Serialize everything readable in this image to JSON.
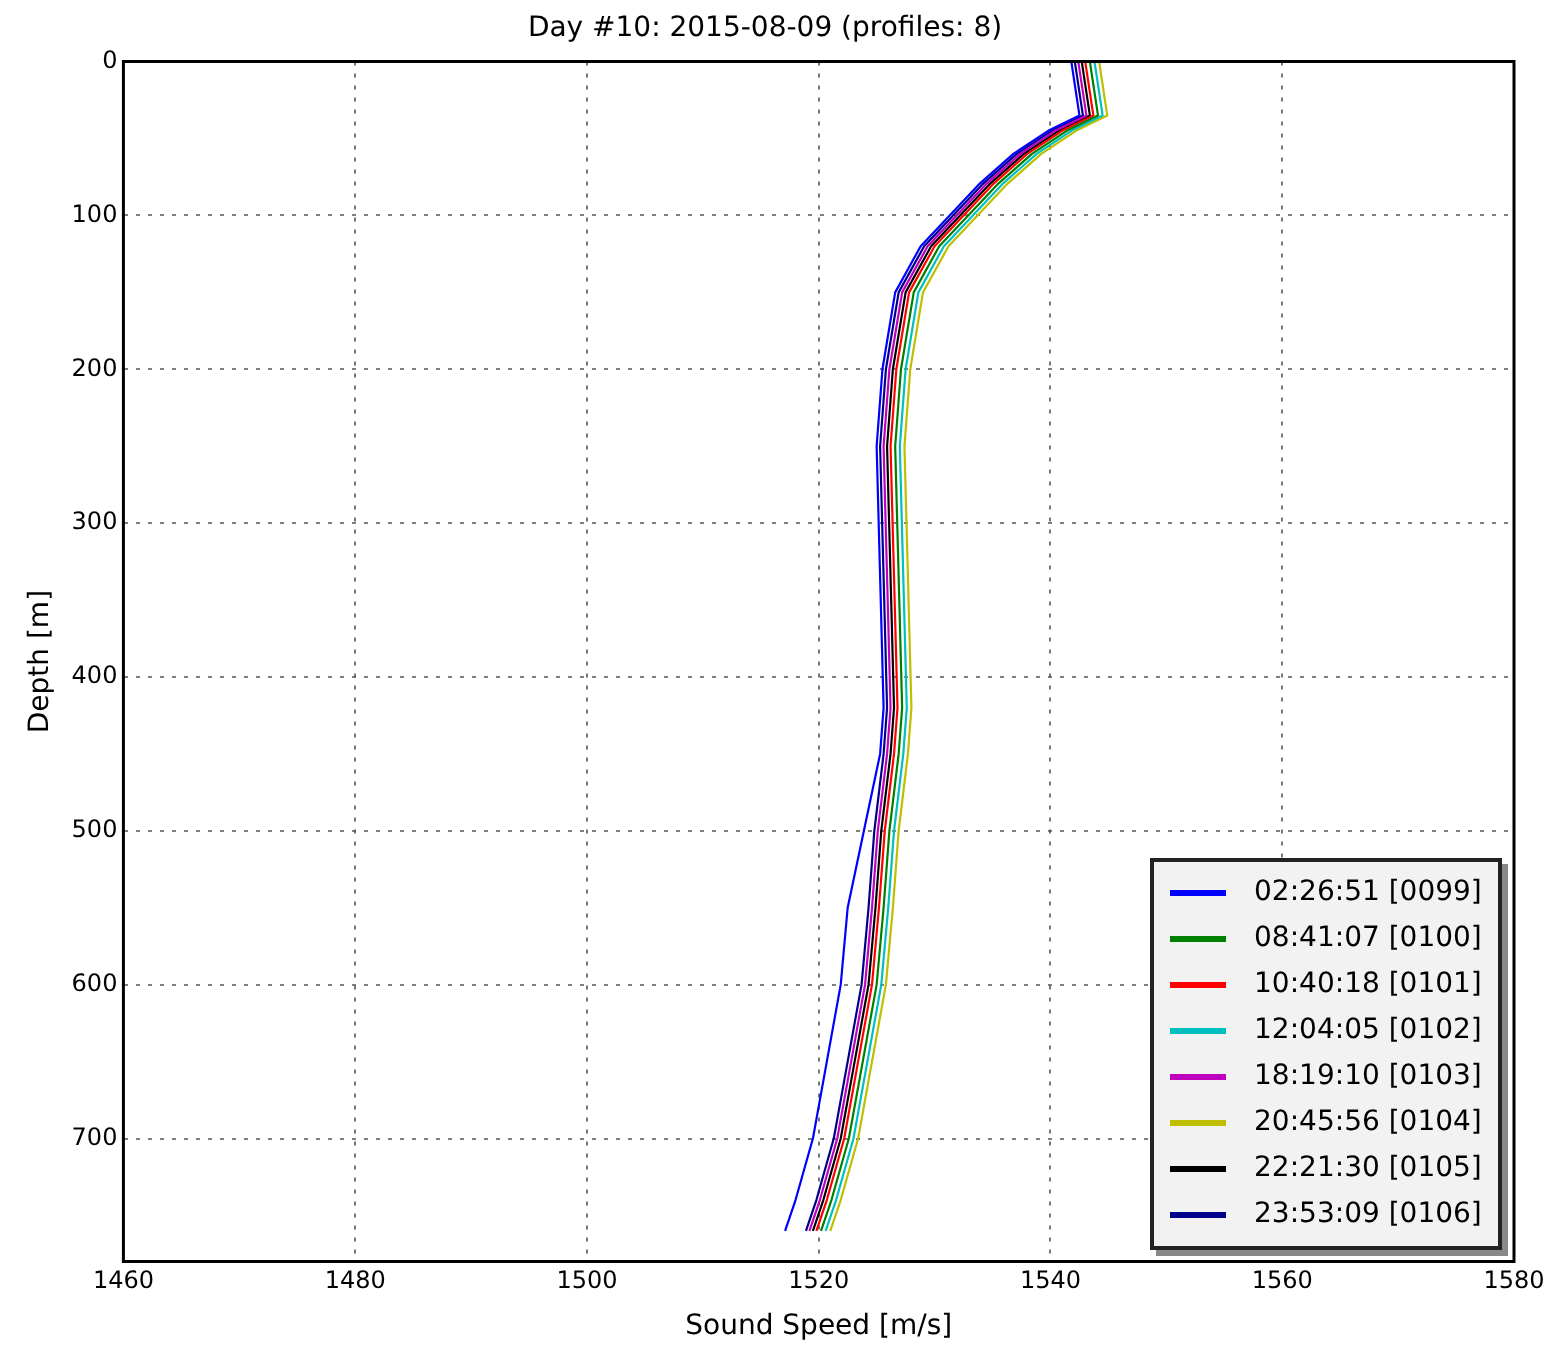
{
  "chart_data": {
    "type": "line",
    "title": "Day #10: 2015-08-09 (profiles: 8)",
    "xlabel": "Sound Speed [m/s]",
    "ylabel": "Depth [m]",
    "xlim": [
      1460,
      1580
    ],
    "xticks": [
      1460,
      1480,
      1500,
      1520,
      1540,
      1560,
      1580
    ],
    "ylim": [
      780,
      0
    ],
    "yticks": [
      0,
      100,
      200,
      300,
      400,
      500,
      600,
      700
    ],
    "grid": true,
    "legend": "bottom right",
    "marker": "none",
    "line_style": "solid",
    "series": [
      {
        "name": "02:26:51 [0099]",
        "color": "#0000ff",
        "x": [
          1541.8,
          1542.2,
          1542.5,
          1539.8,
          1536.8,
          1533.8,
          1531.3,
          1528.8,
          1526.6,
          1525.5,
          1525.0,
          1525.6,
          1525.3,
          1523.9,
          1522.5,
          1521.9,
          1520.7,
          1519.5,
          1518.0,
          1517.1
        ],
        "values": [
          0,
          20,
          35,
          45,
          60,
          80,
          100,
          120,
          150,
          200,
          250,
          420,
          450,
          500,
          550,
          600,
          650,
          700,
          740,
          760
        ]
      },
      {
        "name": "08:41:07 [0100]",
        "color": "#008000",
        "x": [
          1543.4,
          1543.8,
          1544.1,
          1541.4,
          1538.4,
          1535.4,
          1532.9,
          1530.4,
          1528.2,
          1527.1,
          1526.6,
          1527.2,
          1526.9,
          1526.1,
          1525.6,
          1525.0,
          1523.8,
          1522.6,
          1521.1,
          1520.2
        ],
        "values": [
          0,
          20,
          35,
          45,
          60,
          80,
          100,
          120,
          150,
          200,
          250,
          420,
          450,
          500,
          550,
          600,
          650,
          700,
          740,
          760
        ]
      },
      {
        "name": "10:40:18 [0101]",
        "color": "#ff0000",
        "x": [
          1543.0,
          1543.4,
          1543.7,
          1541.0,
          1538.0,
          1535.0,
          1532.5,
          1530.0,
          1527.8,
          1526.7,
          1526.2,
          1526.8,
          1526.5,
          1525.7,
          1525.2,
          1524.6,
          1523.4,
          1522.2,
          1520.7,
          1519.8
        ],
        "values": [
          0,
          20,
          35,
          45,
          60,
          80,
          100,
          120,
          150,
          200,
          250,
          420,
          450,
          500,
          550,
          600,
          650,
          700,
          740,
          760
        ]
      },
      {
        "name": "12:04:05 [0102]",
        "color": "#00bfbf",
        "x": [
          1543.8,
          1544.2,
          1544.5,
          1541.8,
          1538.8,
          1535.8,
          1533.3,
          1530.8,
          1528.6,
          1527.5,
          1527.0,
          1527.6,
          1527.3,
          1526.5,
          1526.0,
          1525.4,
          1524.2,
          1523.0,
          1521.5,
          1520.6
        ],
        "values": [
          0,
          20,
          35,
          45,
          60,
          80,
          100,
          120,
          150,
          200,
          250,
          420,
          450,
          500,
          550,
          600,
          650,
          700,
          740,
          760
        ]
      },
      {
        "name": "18:19:10 [0103]",
        "color": "#bf00bf",
        "x": [
          1542.4,
          1542.8,
          1543.1,
          1540.4,
          1537.4,
          1534.4,
          1531.9,
          1529.4,
          1527.2,
          1526.1,
          1525.6,
          1526.2,
          1525.9,
          1525.1,
          1524.6,
          1524.0,
          1522.8,
          1521.6,
          1520.1,
          1519.2
        ],
        "values": [
          0,
          20,
          35,
          45,
          60,
          80,
          100,
          120,
          150,
          200,
          250,
          420,
          450,
          500,
          550,
          600,
          650,
          700,
          740,
          760
        ]
      },
      {
        "name": "20:45:56 [0104]",
        "color": "#bfbf00",
        "x": [
          1544.2,
          1544.6,
          1544.9,
          1542.2,
          1539.2,
          1536.2,
          1533.7,
          1531.2,
          1529.0,
          1527.9,
          1527.4,
          1528.0,
          1527.7,
          1526.9,
          1526.4,
          1525.8,
          1524.6,
          1523.4,
          1521.9,
          1521.0
        ],
        "values": [
          0,
          20,
          35,
          45,
          60,
          80,
          100,
          120,
          150,
          200,
          250,
          420,
          450,
          500,
          550,
          600,
          650,
          700,
          740,
          760
        ]
      },
      {
        "name": "22:21:30 [0105]",
        "color": "#000000",
        "x": [
          1542.7,
          1543.1,
          1543.4,
          1540.7,
          1537.7,
          1534.7,
          1532.2,
          1529.7,
          1527.5,
          1526.4,
          1525.9,
          1526.5,
          1526.2,
          1525.4,
          1524.9,
          1524.3,
          1523.1,
          1521.9,
          1520.4,
          1519.5
        ],
        "values": [
          0,
          20,
          35,
          45,
          60,
          80,
          100,
          120,
          150,
          200,
          250,
          420,
          450,
          500,
          550,
          600,
          650,
          700,
          740,
          760
        ]
      },
      {
        "name": "23:53:09 [0106]",
        "color": "#00008b",
        "x": [
          1542.1,
          1542.5,
          1542.8,
          1540.1,
          1537.1,
          1534.1,
          1531.6,
          1529.1,
          1526.9,
          1525.8,
          1525.3,
          1525.9,
          1525.6,
          1524.8,
          1524.3,
          1523.7,
          1522.5,
          1521.3,
          1519.8,
          1518.9
        ],
        "values": [
          0,
          20,
          35,
          45,
          60,
          80,
          100,
          120,
          150,
          200,
          250,
          420,
          450,
          500,
          550,
          600,
          650,
          700,
          740,
          760
        ]
      }
    ]
  }
}
